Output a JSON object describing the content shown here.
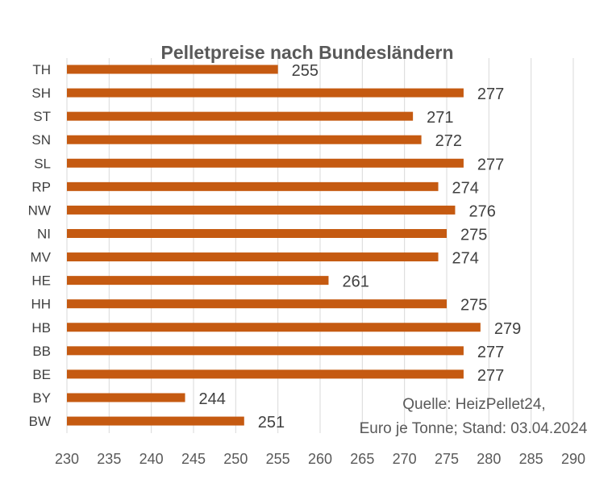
{
  "chart_data": {
    "type": "bar",
    "orientation": "horizontal",
    "title": "Pelletpreise  nach Bundesländern",
    "categories": [
      "TH",
      "SH",
      "ST",
      "SN",
      "SL",
      "RP",
      "NW",
      "NI",
      "MV",
      "HE",
      "HH",
      "HB",
      "BB",
      "BE",
      "BY",
      "BW"
    ],
    "values": [
      255,
      277,
      271,
      272,
      277,
      274,
      276,
      275,
      274,
      261,
      275,
      279,
      277,
      277,
      244,
      251
    ],
    "xlim": [
      230,
      290
    ],
    "xticks": [
      230,
      235,
      240,
      245,
      250,
      255,
      260,
      265,
      270,
      275,
      280,
      285,
      290
    ],
    "grid": true,
    "bar_color": "#C55A11",
    "note_lines": [
      "Quelle: HeizPellet24,",
      "Euro je Tonne; Stand: 03.04.2024"
    ]
  }
}
